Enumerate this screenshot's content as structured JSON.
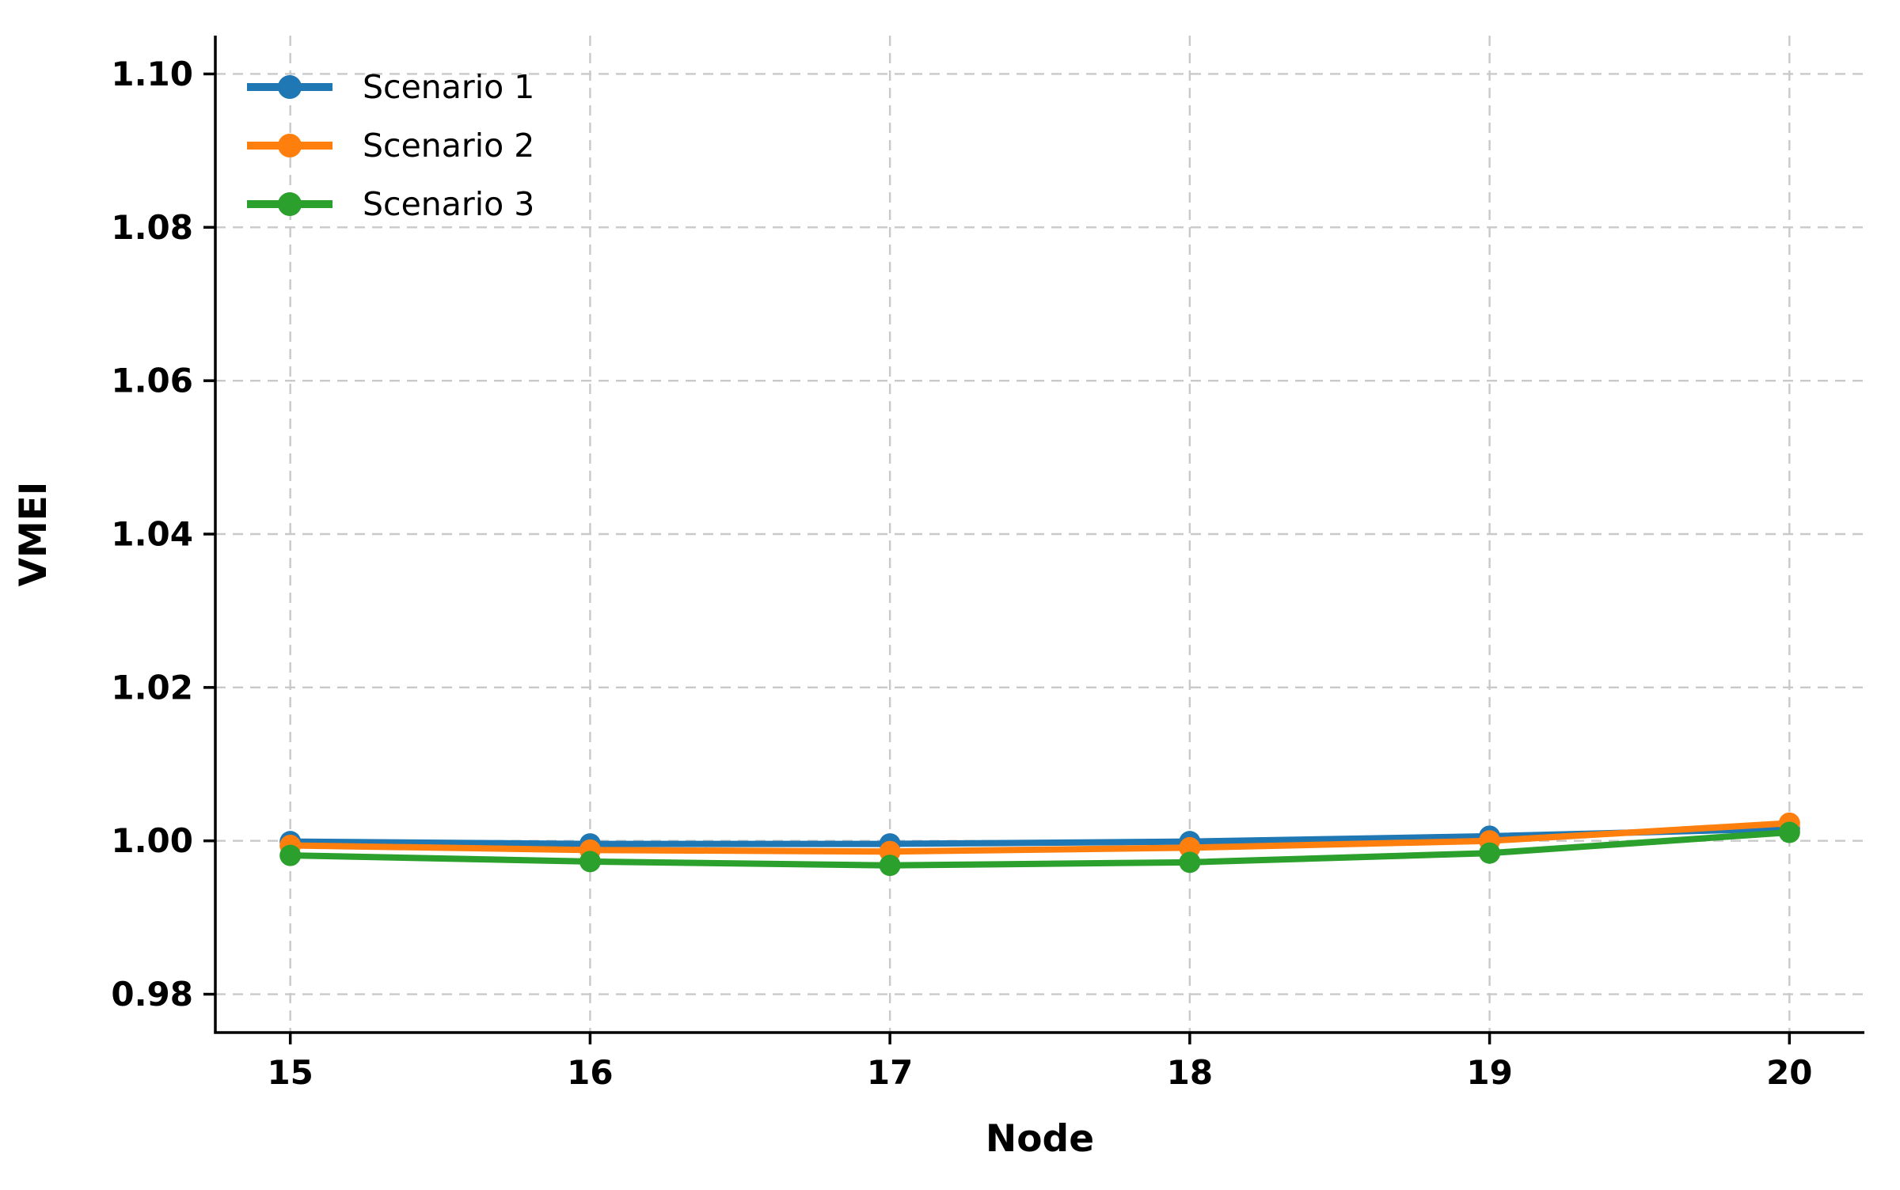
{
  "figure": {
    "background_color": "#ffffff",
    "axis_color": "#000000",
    "grid_color": "#c9c9c9"
  },
  "chart_data": {
    "type": "line",
    "title": "",
    "xlabel": "Node",
    "ylabel": "VMEI",
    "x": [
      15,
      16,
      17,
      18,
      19,
      20
    ],
    "xtick_labels": [
      "15",
      "16",
      "17",
      "18",
      "19",
      "20"
    ],
    "yticks": [
      0.98,
      1.0,
      1.02,
      1.04,
      1.06,
      1.08,
      1.1
    ],
    "ytick_labels": [
      "0.98",
      "1.00",
      "1.02",
      "1.04",
      "1.06",
      "1.08",
      "1.10"
    ],
    "xlim": [
      14.75,
      20.25
    ],
    "ylim": [
      0.975,
      1.105
    ],
    "grid": true,
    "grid_style": "dashed",
    "legend_position": "upper-left",
    "legend_entries": [
      "Scenario 1",
      "Scenario 2",
      "Scenario 3"
    ],
    "series": [
      {
        "name": "Scenario 1",
        "color": "#1f77b4",
        "values": [
          0.9999,
          0.9996,
          0.9996,
          0.9999,
          1.0006,
          1.0016
        ]
      },
      {
        "name": "Scenario 2",
        "color": "#ff7f0e",
        "values": [
          0.9994,
          0.9988,
          0.9986,
          0.9991,
          1.0,
          1.0023
        ]
      },
      {
        "name": "Scenario 3",
        "color": "#2ca02c",
        "values": [
          0.9981,
          0.9973,
          0.9968,
          0.9972,
          0.9984,
          1.0011
        ]
      }
    ]
  }
}
